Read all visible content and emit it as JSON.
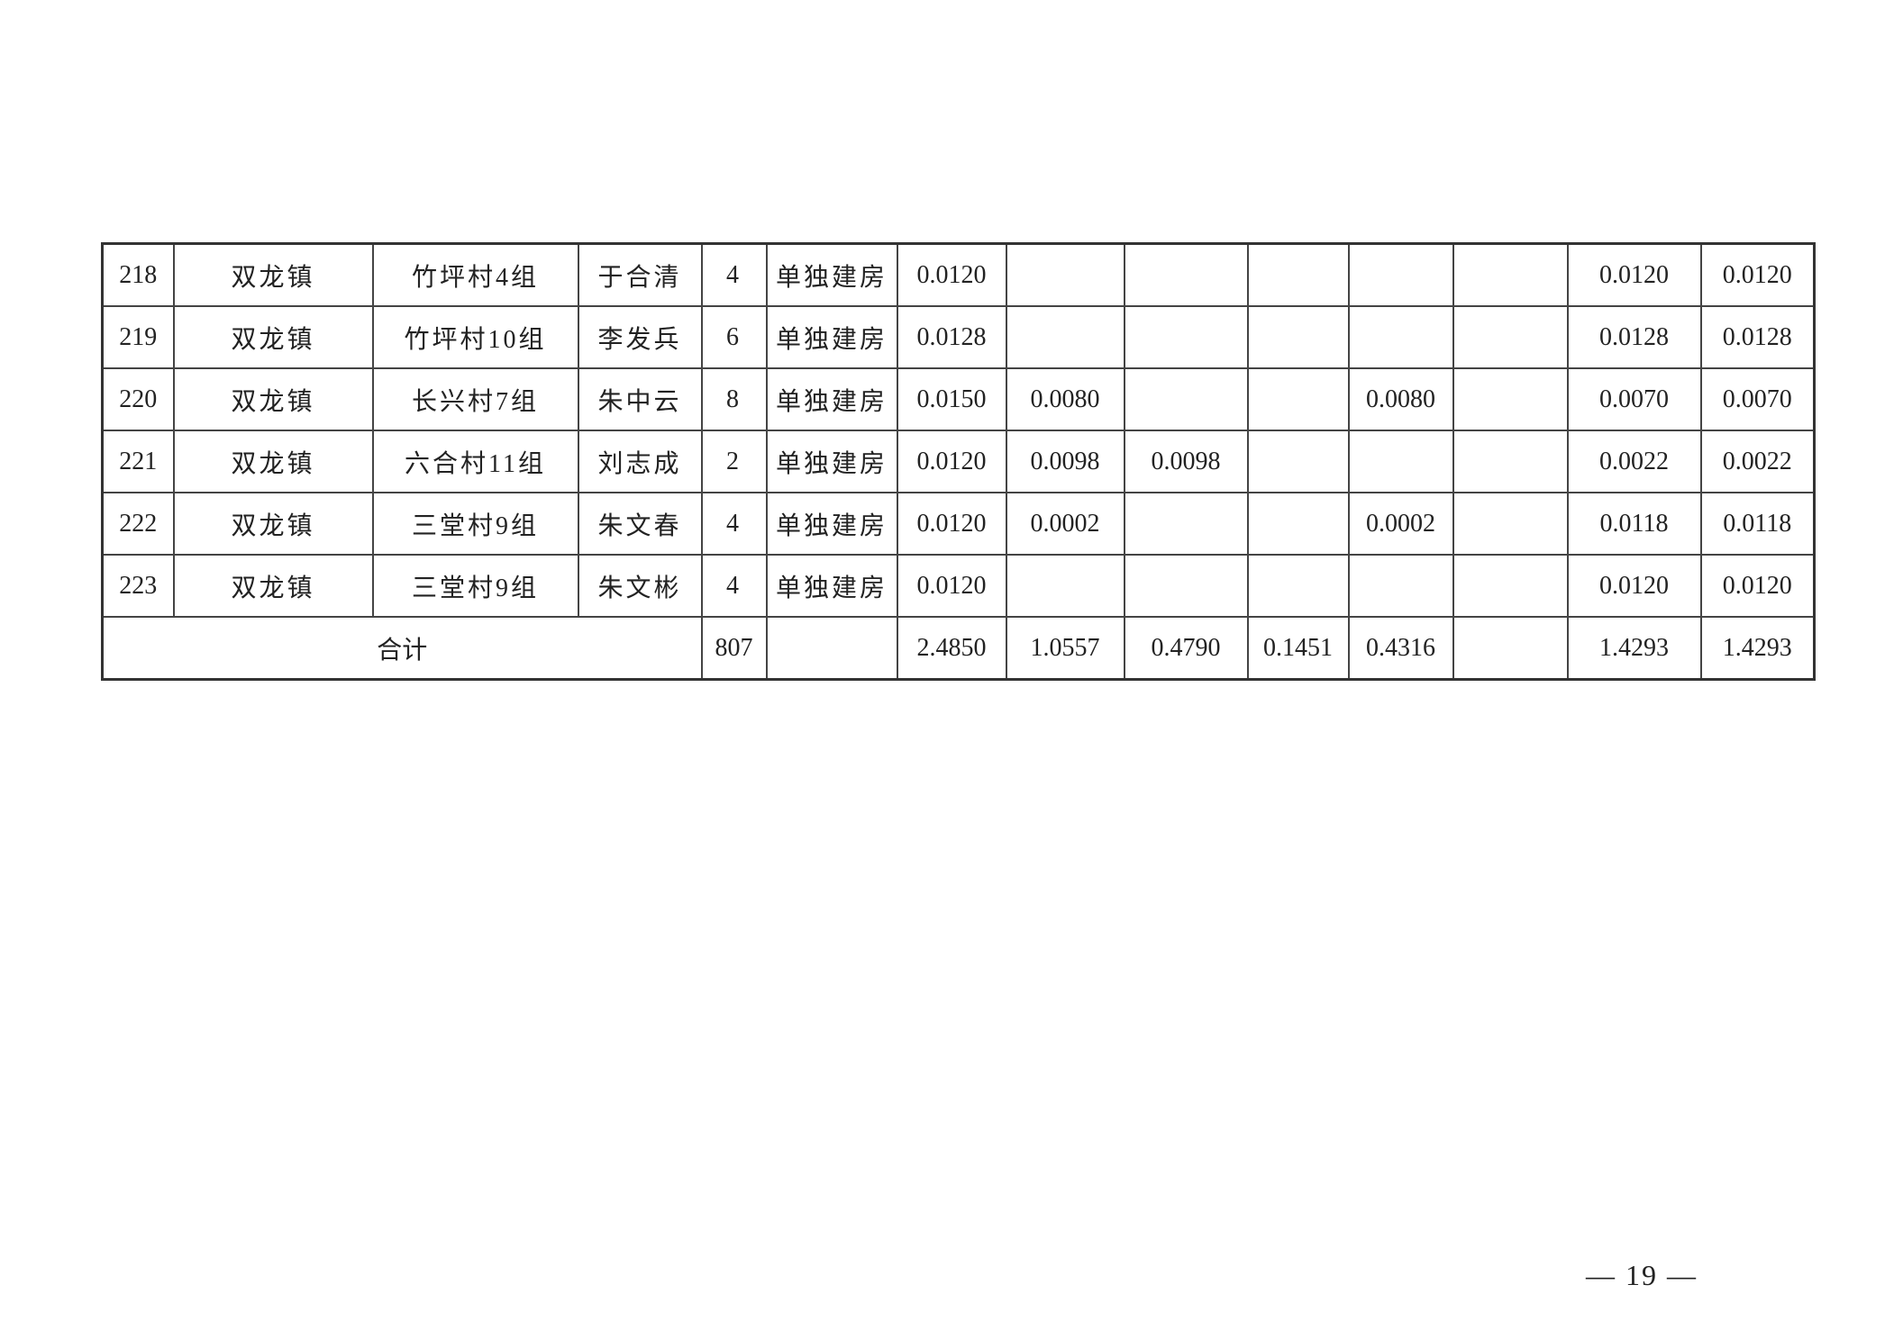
{
  "table": {
    "rows": [
      [
        "218",
        "双龙镇",
        "竹坪村4组",
        "于合清",
        "4",
        "单独建房",
        "0.0120",
        "",
        "",
        "",
        "",
        "",
        "0.0120",
        "0.0120"
      ],
      [
        "219",
        "双龙镇",
        "竹坪村10组",
        "李发兵",
        "6",
        "单独建房",
        "0.0128",
        "",
        "",
        "",
        "",
        "",
        "0.0128",
        "0.0128"
      ],
      [
        "220",
        "双龙镇",
        "长兴村7组",
        "朱中云",
        "8",
        "单独建房",
        "0.0150",
        "0.0080",
        "",
        "",
        "0.0080",
        "",
        "0.0070",
        "0.0070"
      ],
      [
        "221",
        "双龙镇",
        "六合村11组",
        "刘志成",
        "2",
        "单独建房",
        "0.0120",
        "0.0098",
        "0.0098",
        "",
        "",
        "",
        "0.0022",
        "0.0022"
      ],
      [
        "222",
        "双龙镇",
        "三堂村9组",
        "朱文春",
        "4",
        "单独建房",
        "0.0120",
        "0.0002",
        "",
        "",
        "0.0002",
        "",
        "0.0118",
        "0.0118"
      ],
      [
        "223",
        "双龙镇",
        "三堂村9组",
        "朱文彬",
        "4",
        "单独建房",
        "0.0120",
        "",
        "",
        "",
        "",
        "",
        "0.0120",
        "0.0120"
      ]
    ],
    "total": {
      "label": "合计",
      "values": [
        "807",
        "",
        "2.4850",
        "1.0557",
        "0.4790",
        "0.1451",
        "0.4316",
        "",
        "1.4293",
        "1.4293"
      ]
    }
  },
  "page_number": "— 19 —"
}
